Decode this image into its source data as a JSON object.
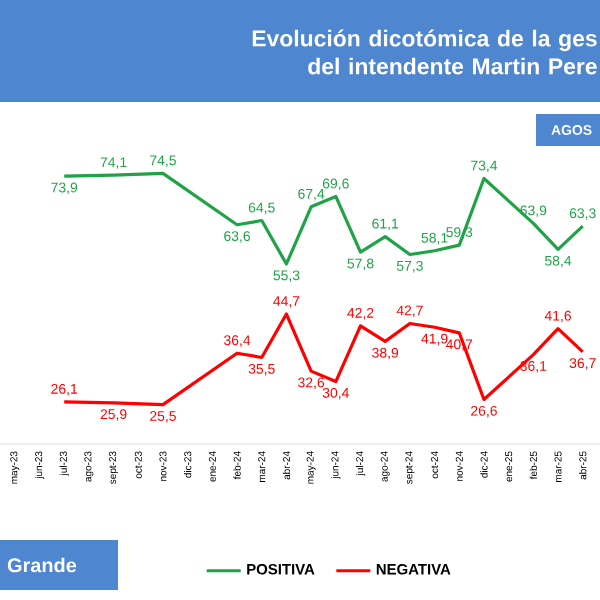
{
  "chart_data": {
    "type": "line",
    "title": "Evolución dicotómica de la ges\ndel intendente Martin Pere",
    "subtitle": "AGOS",
    "categories": [
      "may-23",
      "jun-23",
      "jul-23",
      "ago-23",
      "sept-23",
      "oct-23",
      "nov-23",
      "dic-23",
      "ene-24",
      "feb-24",
      "mar-24",
      "abr-24",
      "may-24",
      "jun-24",
      "jul-24",
      "ago-24",
      "sept-24",
      "oct-24",
      "nov-24",
      "dic-24",
      "ene-25",
      "feb-25",
      "mar-25",
      "abr-25"
    ],
    "series": [
      {
        "name": "POSITIVA",
        "color": "#1ea446",
        "values": [
          null,
          null,
          73.9,
          null,
          74.1,
          null,
          74.5,
          null,
          null,
          63.6,
          64.5,
          55.3,
          67.4,
          69.6,
          57.8,
          61.1,
          57.3,
          58.1,
          59.3,
          73.4,
          null,
          63.9,
          58.4,
          63.3
        ],
        "value_labels": [
          null,
          null,
          "73,9",
          null,
          "74,1",
          null,
          "74,5",
          null,
          null,
          "63,6",
          "64,5",
          "55,3",
          "67,4",
          "69,6",
          "57,8",
          "61,1",
          "57,3",
          "58,1",
          "59,3",
          "73,4",
          null,
          "63,9",
          "58,4",
          "63,3"
        ]
      },
      {
        "name": "NEGATIVA",
        "color": "#ff0000",
        "values": [
          null,
          null,
          26.1,
          null,
          25.9,
          null,
          25.5,
          null,
          null,
          36.4,
          35.5,
          44.7,
          32.6,
          30.4,
          42.2,
          38.9,
          42.7,
          41.9,
          40.7,
          26.6,
          null,
          36.1,
          41.6,
          36.7
        ],
        "value_labels": [
          null,
          null,
          "26,1",
          null,
          "25,9",
          null,
          "25,5",
          null,
          null,
          "36,4",
          "35,5",
          "44,7",
          "32,6",
          "30,4",
          "42,2",
          "38,9",
          "42,7",
          "41,9",
          "40,7",
          "26,6",
          null,
          "36,1",
          "41,6",
          "36,7"
        ]
      }
    ],
    "legend": "bottom",
    "annotations": [
      "Grande"
    ]
  }
}
